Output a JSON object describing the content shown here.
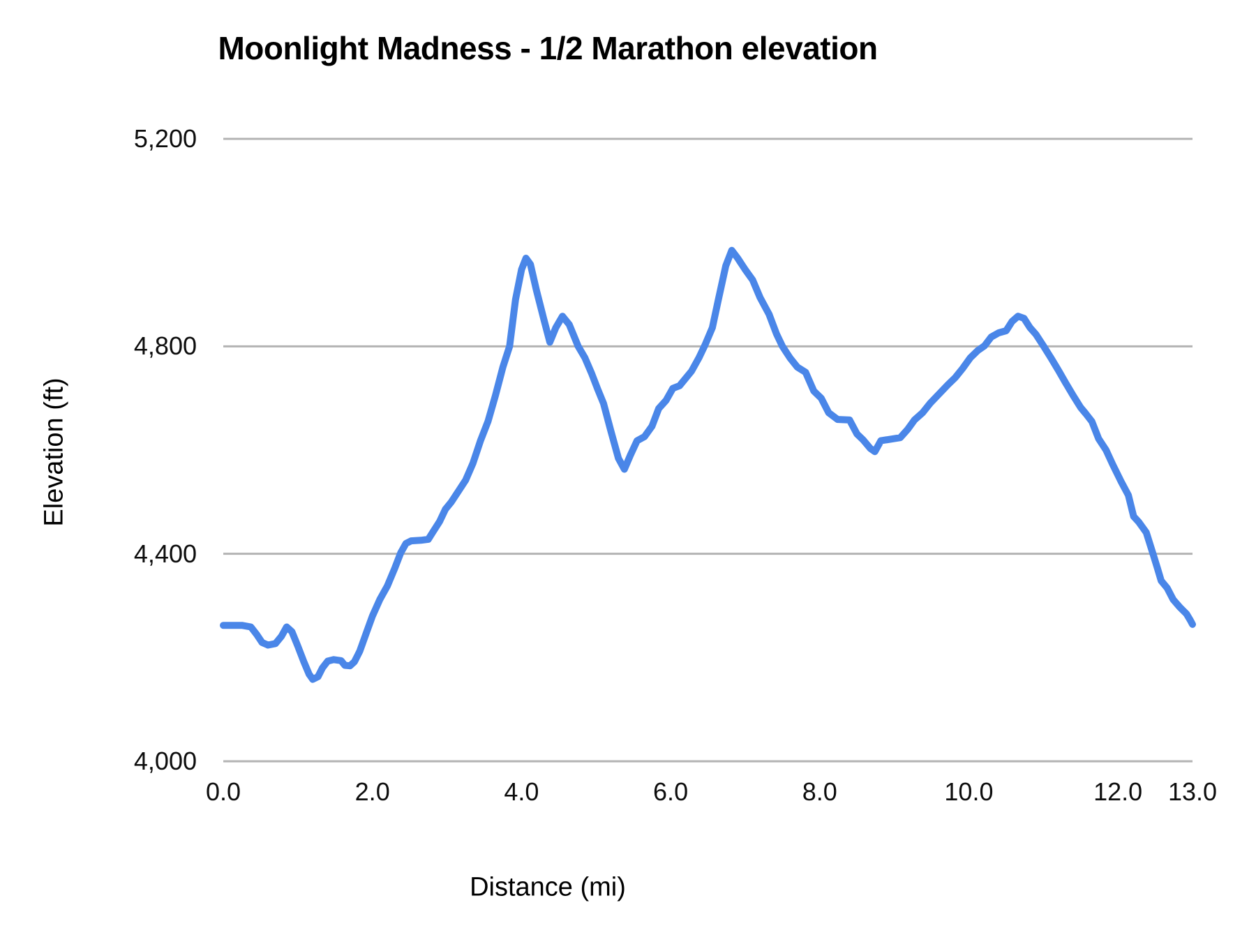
{
  "title": "Moonlight Madness - 1/2 Marathon elevation",
  "chart_data": {
    "type": "line",
    "title": "Moonlight Madness - 1/2 Marathon elevation",
    "xlabel": "Distance (mi)",
    "ylabel": "Elevation (ft)",
    "xlim": [
      0,
      13
    ],
    "ylim": [
      4000,
      5200
    ],
    "x_tick_values": [
      0,
      2,
      4,
      6,
      8,
      10,
      12,
      13
    ],
    "x_tick_labels": [
      "0.0",
      "2.0",
      "4.0",
      "6.0",
      "8.0",
      "10.0",
      "12.0",
      "13.0"
    ],
    "y_tick_values": [
      4000,
      4400,
      4800,
      5200
    ],
    "y_tick_labels": [
      "4,000",
      "4,400",
      "4,800",
      "5,200"
    ],
    "grid": true,
    "legend_position": "none",
    "gridline_color": "#b3b3b3",
    "series": [
      {
        "name": "Elevation",
        "color": "#4a86e8",
        "points": [
          [
            0.0,
            4262
          ],
          [
            0.12,
            4262
          ],
          [
            0.25,
            4262
          ],
          [
            0.37,
            4259
          ],
          [
            0.45,
            4244
          ],
          [
            0.52,
            4229
          ],
          [
            0.6,
            4224
          ],
          [
            0.7,
            4227
          ],
          [
            0.78,
            4241
          ],
          [
            0.85,
            4259
          ],
          [
            0.92,
            4250
          ],
          [
            1.0,
            4222
          ],
          [
            1.08,
            4192
          ],
          [
            1.15,
            4168
          ],
          [
            1.2,
            4158
          ],
          [
            1.27,
            4163
          ],
          [
            1.33,
            4180
          ],
          [
            1.4,
            4193
          ],
          [
            1.48,
            4196
          ],
          [
            1.58,
            4194
          ],
          [
            1.63,
            4185
          ],
          [
            1.7,
            4184
          ],
          [
            1.76,
            4192
          ],
          [
            1.83,
            4212
          ],
          [
            1.92,
            4248
          ],
          [
            2.0,
            4280
          ],
          [
            2.1,
            4312
          ],
          [
            2.2,
            4338
          ],
          [
            2.3,
            4372
          ],
          [
            2.38,
            4402
          ],
          [
            2.45,
            4420
          ],
          [
            2.52,
            4425
          ],
          [
            2.65,
            4426
          ],
          [
            2.75,
            4428
          ],
          [
            2.82,
            4444
          ],
          [
            2.9,
            4462
          ],
          [
            2.98,
            4486
          ],
          [
            3.06,
            4500
          ],
          [
            3.15,
            4520
          ],
          [
            3.25,
            4542
          ],
          [
            3.35,
            4575
          ],
          [
            3.45,
            4618
          ],
          [
            3.55,
            4655
          ],
          [
            3.65,
            4705
          ],
          [
            3.75,
            4760
          ],
          [
            3.84,
            4800
          ],
          [
            3.92,
            4890
          ],
          [
            4.0,
            4948
          ],
          [
            4.06,
            4970
          ],
          [
            4.12,
            4958
          ],
          [
            4.2,
            4908
          ],
          [
            4.3,
            4852
          ],
          [
            4.38,
            4808
          ],
          [
            4.46,
            4836
          ],
          [
            4.55,
            4858
          ],
          [
            4.64,
            4842
          ],
          [
            4.76,
            4800
          ],
          [
            4.85,
            4778
          ],
          [
            4.94,
            4748
          ],
          [
            5.02,
            4718
          ],
          [
            5.1,
            4690
          ],
          [
            5.2,
            4636
          ],
          [
            5.3,
            4584
          ],
          [
            5.38,
            4563
          ],
          [
            5.46,
            4590
          ],
          [
            5.55,
            4618
          ],
          [
            5.65,
            4626
          ],
          [
            5.75,
            4646
          ],
          [
            5.84,
            4680
          ],
          [
            5.94,
            4696
          ],
          [
            6.03,
            4719
          ],
          [
            6.12,
            4724
          ],
          [
            6.2,
            4738
          ],
          [
            6.28,
            4752
          ],
          [
            6.38,
            4778
          ],
          [
            6.46,
            4802
          ],
          [
            6.56,
            4836
          ],
          [
            6.64,
            4890
          ],
          [
            6.74,
            4955
          ],
          [
            6.82,
            4985
          ],
          [
            6.9,
            4970
          ],
          [
            7.0,
            4948
          ],
          [
            7.1,
            4928
          ],
          [
            7.2,
            4894
          ],
          [
            7.32,
            4862
          ],
          [
            7.42,
            4824
          ],
          [
            7.5,
            4800
          ],
          [
            7.6,
            4778
          ],
          [
            7.7,
            4760
          ],
          [
            7.81,
            4750
          ],
          [
            7.92,
            4714
          ],
          [
            8.02,
            4700
          ],
          [
            8.12,
            4672
          ],
          [
            8.24,
            4659
          ],
          [
            8.4,
            4658
          ],
          [
            8.5,
            4631
          ],
          [
            8.58,
            4620
          ],
          [
            8.68,
            4603
          ],
          [
            8.74,
            4597
          ],
          [
            8.82,
            4618
          ],
          [
            8.95,
            4621
          ],
          [
            9.08,
            4624
          ],
          [
            9.18,
            4640
          ],
          [
            9.27,
            4658
          ],
          [
            9.38,
            4672
          ],
          [
            9.48,
            4690
          ],
          [
            9.6,
            4708
          ],
          [
            9.72,
            4726
          ],
          [
            9.82,
            4740
          ],
          [
            9.92,
            4758
          ],
          [
            10.02,
            4778
          ],
          [
            10.12,
            4792
          ],
          [
            10.21,
            4801
          ],
          [
            10.3,
            4818
          ],
          [
            10.4,
            4826
          ],
          [
            10.5,
            4830
          ],
          [
            10.58,
            4848
          ],
          [
            10.66,
            4858
          ],
          [
            10.74,
            4854
          ],
          [
            10.82,
            4836
          ],
          [
            10.9,
            4823
          ],
          [
            11.0,
            4801
          ],
          [
            11.1,
            4778
          ],
          [
            11.2,
            4754
          ],
          [
            11.3,
            4729
          ],
          [
            11.4,
            4705
          ],
          [
            11.5,
            4682
          ],
          [
            11.57,
            4670
          ],
          [
            11.65,
            4655
          ],
          [
            11.74,
            4622
          ],
          [
            11.84,
            4600
          ],
          [
            11.93,
            4572
          ],
          [
            12.04,
            4540
          ],
          [
            12.14,
            4513
          ],
          [
            12.21,
            4472
          ],
          [
            12.28,
            4461
          ],
          [
            12.38,
            4441
          ],
          [
            12.47,
            4400
          ],
          [
            12.53,
            4372
          ],
          [
            12.58,
            4348
          ],
          [
            12.66,
            4334
          ],
          [
            12.74,
            4312
          ],
          [
            12.83,
            4297
          ],
          [
            12.92,
            4284
          ],
          [
            12.97,
            4272
          ],
          [
            13.0,
            4264
          ]
        ]
      }
    ]
  }
}
